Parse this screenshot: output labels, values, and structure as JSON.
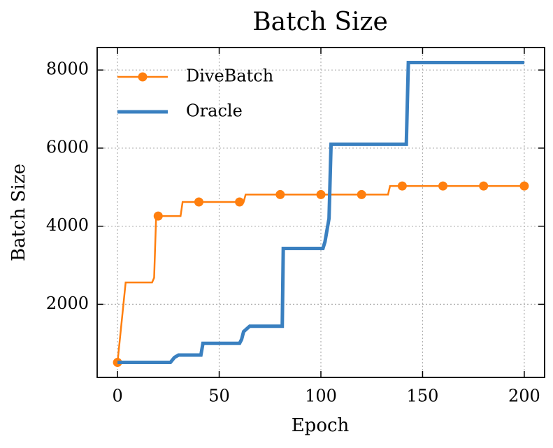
{
  "chart_data": {
    "type": "line",
    "title": "Batch Size",
    "xlabel": "Epoch",
    "ylabel": "Batch Size",
    "xlim": [
      -10,
      210
    ],
    "xticks": [
      0,
      50,
      100,
      150,
      200
    ],
    "ylim": [
      128,
      8576
    ],
    "yticks": [
      2000,
      4000,
      6000,
      8000
    ],
    "grid": true,
    "legend": "upper left",
    "series": [
      {
        "name": "DiveBatch",
        "color": "#ff7f0e",
        "marker": "o",
        "x": [
          0,
          4,
          17,
          18,
          19,
          20,
          31,
          32,
          40,
          60,
          62,
          63,
          80,
          100,
          120,
          133,
          134,
          140,
          160,
          180,
          200
        ],
        "values": [
          512,
          2560,
          2560,
          2680,
          4260,
          4260,
          4260,
          4620,
          4620,
          4620,
          4620,
          4810,
          4810,
          4810,
          4810,
          4810,
          5030,
          5030,
          5030,
          5030,
          5030
        ]
      },
      {
        "name": "Oracle",
        "color": "#3a80c0",
        "x": [
          0,
          26,
          28,
          30,
          41,
          42,
          60,
          61,
          62,
          65,
          81,
          81.5,
          101,
          102,
          104,
          105,
          142,
          143,
          200
        ],
        "values": [
          512,
          512,
          640,
          700,
          700,
          1000,
          1000,
          1100,
          1300,
          1440,
          1440,
          3430,
          3430,
          3600,
          4200,
          6100,
          6100,
          8192,
          8192
        ]
      }
    ]
  }
}
